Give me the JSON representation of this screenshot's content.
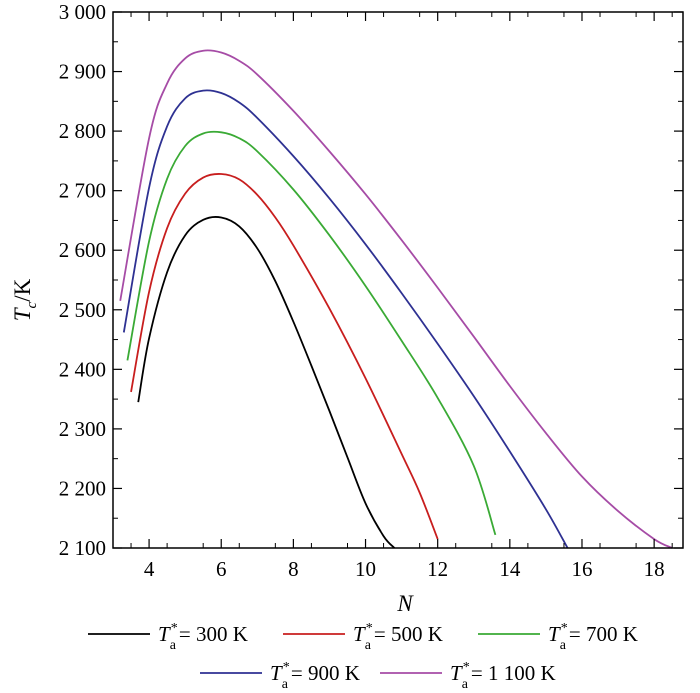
{
  "chart_data": {
    "type": "line",
    "xlabel": "N",
    "ylabel_main": "T",
    "ylabel_sub": "c",
    "ylabel_unit": "/K",
    "xlim": [
      3,
      18.8
    ],
    "ylim": [
      2100,
      3000
    ],
    "x_ticks": [
      4,
      6,
      8,
      10,
      12,
      14,
      16,
      18
    ],
    "y_ticks": [
      2100,
      2200,
      2300,
      2400,
      2500,
      2600,
      2700,
      2800,
      2900,
      3000
    ],
    "y_tick_labels": [
      "2 100",
      "2 200",
      "2 300",
      "2 400",
      "2 500",
      "2 600",
      "2 700",
      "2 800",
      "2 900",
      "3 000"
    ],
    "x_tick_labels": [
      "4",
      "6",
      "8",
      "10",
      "12",
      "14",
      "16",
      "18"
    ],
    "grid": false,
    "legend_position": "bottom",
    "series": [
      {
        "name": "= 300 K",
        "legend_var": "T",
        "legend_sub": "a",
        "legend_sup": "*",
        "color": "#000000",
        "x": [
          3.7,
          4.0,
          4.5,
          5.0,
          5.5,
          6.0,
          6.5,
          7.0,
          7.5,
          8.0,
          8.5,
          9.0,
          9.5,
          10.0,
          10.5,
          10.8
        ],
        "y": [
          2345,
          2452,
          2563,
          2625,
          2651,
          2655,
          2640,
          2603,
          2548,
          2480,
          2406,
          2330,
          2252,
          2175,
          2120,
          2100
        ]
      },
      {
        "name": "= 500 K",
        "legend_var": "T",
        "legend_sub": "a",
        "legend_sup": "*",
        "color": "#c81e1e",
        "x": [
          3.5,
          4.0,
          4.5,
          5.0,
          5.5,
          6.0,
          6.5,
          7.0,
          7.5,
          8.0,
          9.0,
          10.0,
          11.0,
          11.5,
          12.0
        ],
        "y": [
          2362,
          2530,
          2637,
          2695,
          2722,
          2728,
          2719,
          2693,
          2655,
          2608,
          2502,
          2385,
          2258,
          2193,
          2115
        ]
      },
      {
        "name": "= 700 K",
        "legend_var": "T",
        "legend_sub": "a",
        "legend_sup": "*",
        "color": "#3aaa35",
        "x": [
          3.4,
          4.0,
          4.5,
          5.0,
          5.5,
          6.0,
          6.5,
          7.0,
          8.0,
          9.0,
          10.0,
          11.0,
          12.0,
          13.0,
          13.6
        ],
        "y": [
          2415,
          2615,
          2720,
          2775,
          2796,
          2798,
          2788,
          2766,
          2702,
          2625,
          2540,
          2448,
          2352,
          2238,
          2122
        ]
      },
      {
        "name": "= 900 K",
        "legend_var": "T",
        "legend_sub": "a",
        "legend_sup": "*",
        "color": "#2e3192",
        "x": [
          3.3,
          4.0,
          4.5,
          5.0,
          5.5,
          6.0,
          6.5,
          7.0,
          8.0,
          9.0,
          10.0,
          11.0,
          12.0,
          13.0,
          14.0,
          15.0,
          15.6
        ],
        "y": [
          2462,
          2705,
          2808,
          2855,
          2868,
          2864,
          2848,
          2822,
          2758,
          2687,
          2610,
          2528,
          2443,
          2355,
          2262,
          2165,
          2100
        ]
      },
      {
        "name": "= 1 100 K",
        "legend_var": "T",
        "legend_sub": "a",
        "legend_sup": "*",
        "color": "#a64ca6",
        "x": [
          3.2,
          4.0,
          4.5,
          5.0,
          5.5,
          6.0,
          6.5,
          7.0,
          8.0,
          9.0,
          10.0,
          11.0,
          12.0,
          13.0,
          14.0,
          15.0,
          16.0,
          17.0,
          18.0,
          18.5
        ],
        "y": [
          2515,
          2788,
          2880,
          2922,
          2935,
          2932,
          2918,
          2895,
          2834,
          2766,
          2694,
          2617,
          2537,
          2455,
          2372,
          2293,
          2220,
          2162,
          2115,
          2100
        ]
      }
    ]
  }
}
